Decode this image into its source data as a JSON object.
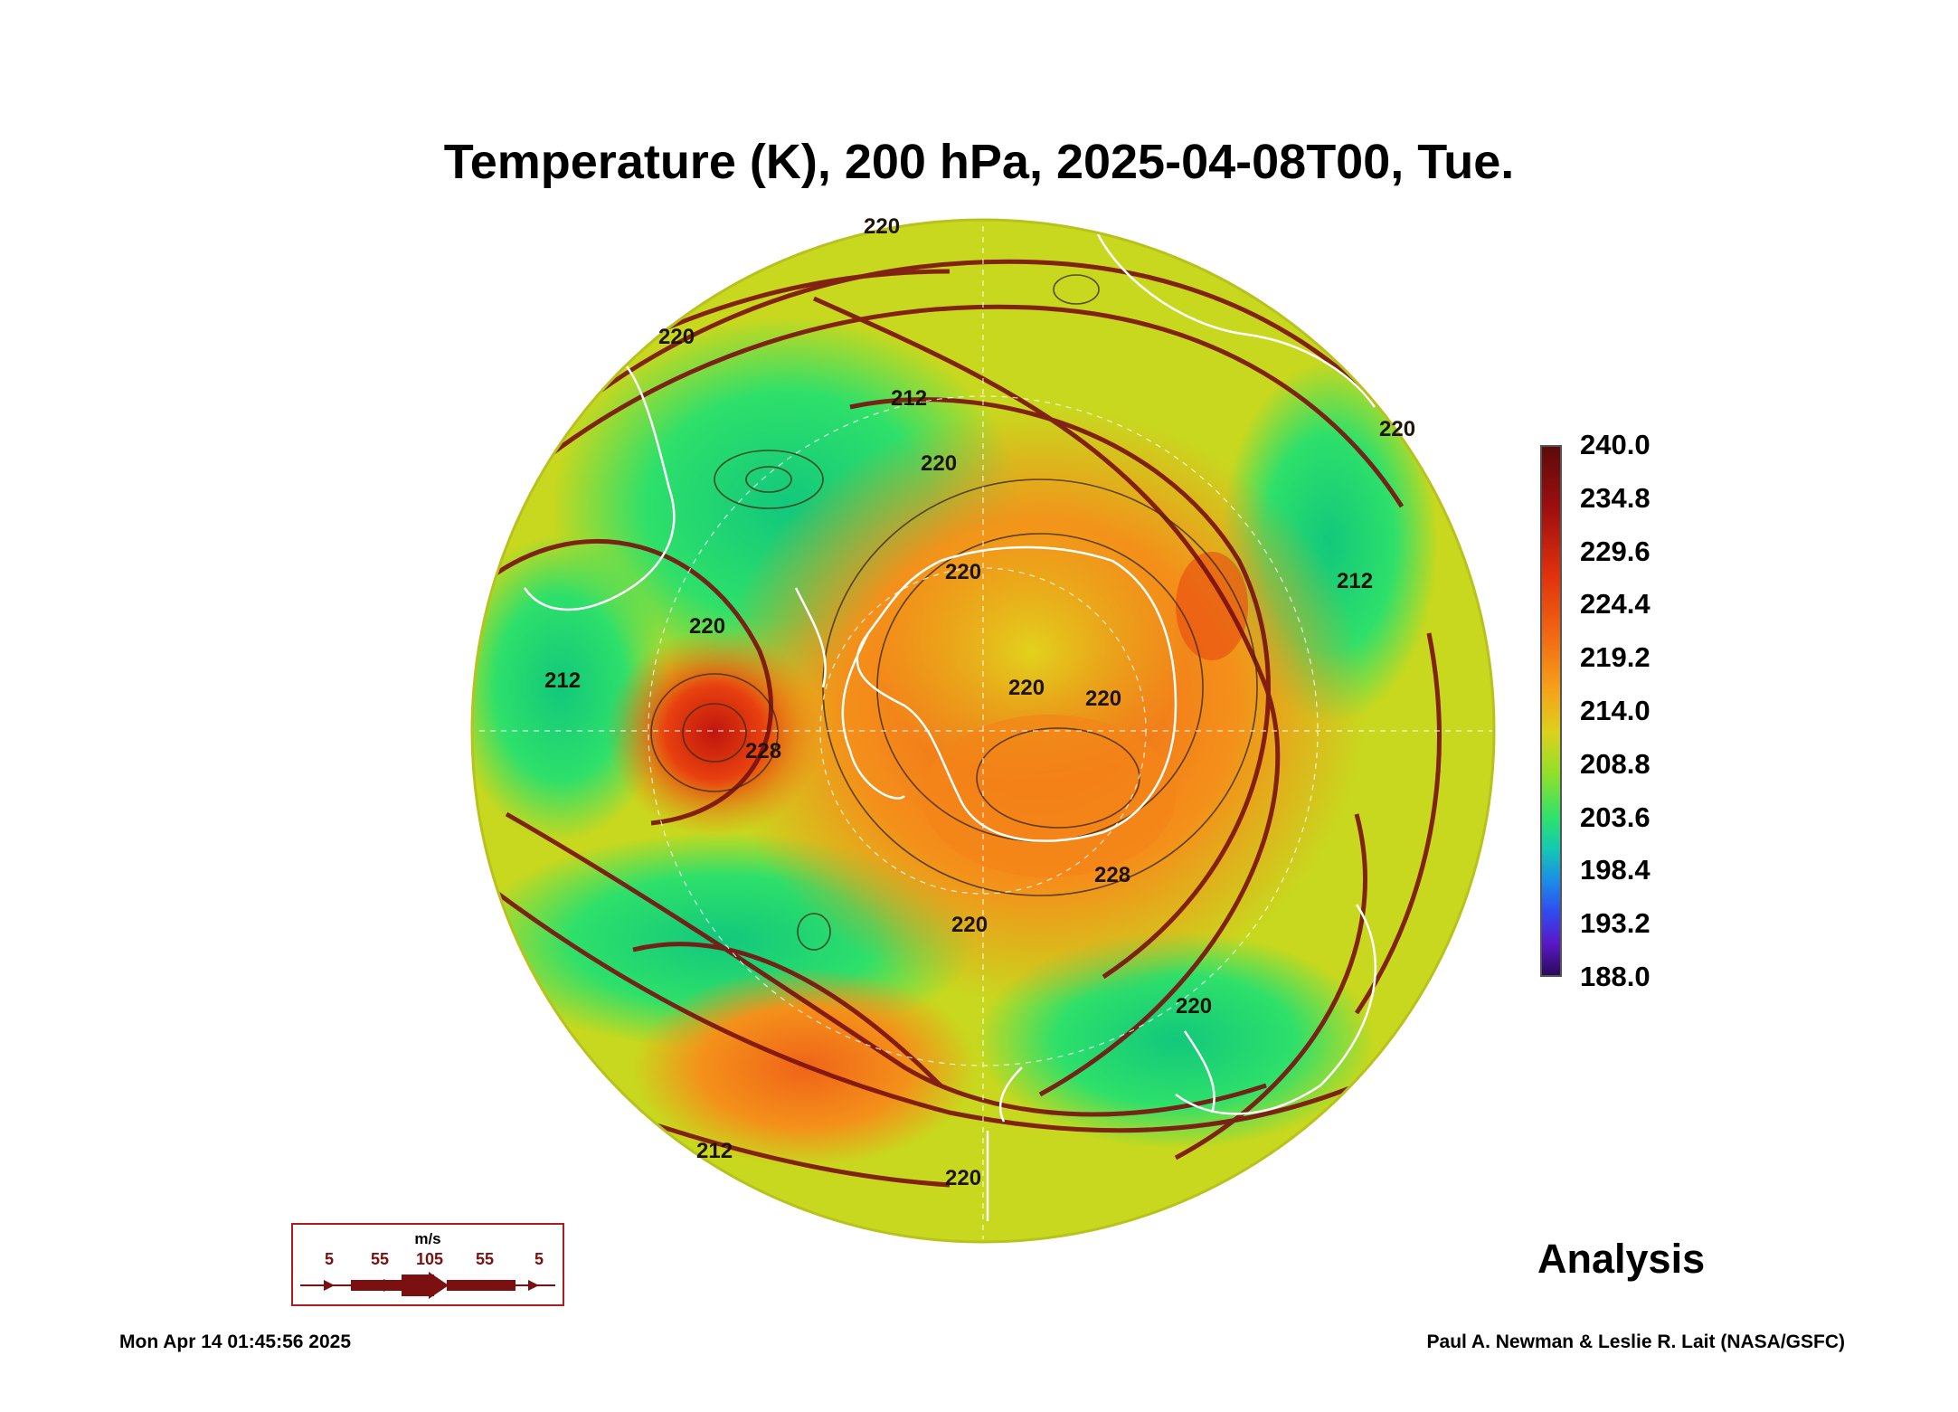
{
  "title": "Temperature (K), 200 hPa, 2025-04-08T00, Tue.",
  "colorbar": {
    "labels": [
      "240.0",
      "234.8",
      "229.6",
      "224.4",
      "219.2",
      "214.0",
      "208.8",
      "203.6",
      "198.4",
      "193.2",
      "188.0"
    ],
    "min": 188.0,
    "max": 240.0
  },
  "contour_labels": [
    "220",
    "212",
    "220",
    "220",
    "228",
    "220",
    "212",
    "220",
    "220",
    "212",
    "220",
    "228",
    "220",
    "212",
    "220",
    "220",
    "220"
  ],
  "label_analysis": "Analysis",
  "wind_legend": {
    "unit": "m/s",
    "values": [
      "5",
      "55",
      "105",
      "55",
      "5"
    ]
  },
  "footer": {
    "timestamp": "Mon Apr 14 01:45:56 2025",
    "credits": "Paul A. Newman & Leslie R. Lait (NASA/GSFC)"
  },
  "colors": {
    "streamline": "#7a1010",
    "coastline": "#ffffff",
    "contour": "#3a2a10"
  }
}
